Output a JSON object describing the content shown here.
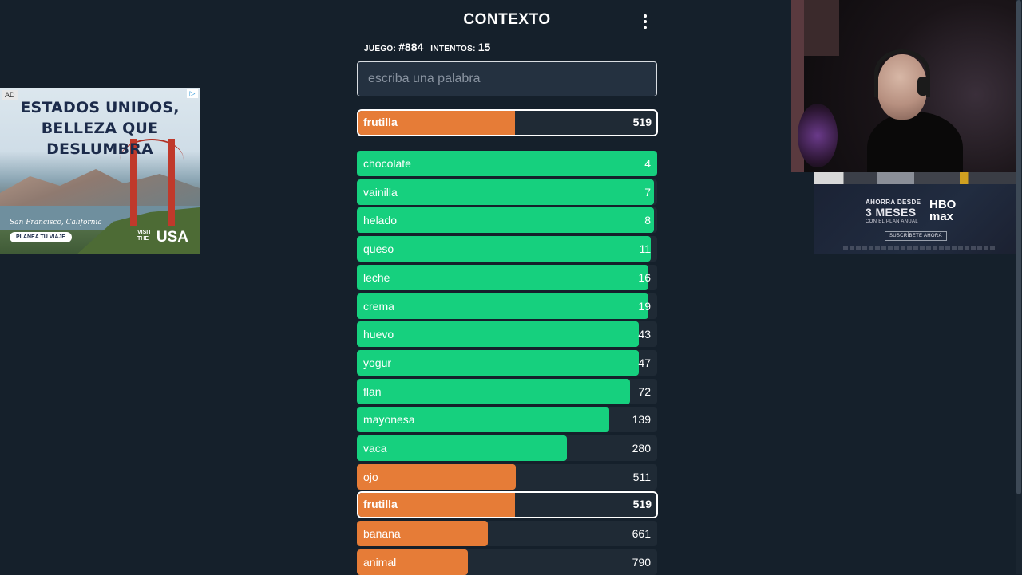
{
  "header": {
    "title": "CONTEXTO",
    "menu_icon": "vertical-dots-icon"
  },
  "info": {
    "game_label": "JUEGO:",
    "game_value": "#884",
    "attempts_label": "INTENTOS:",
    "attempts_value": "15"
  },
  "search": {
    "placeholder": "escriba una palabra",
    "value": ""
  },
  "colors": {
    "green": "#16d07e",
    "orange": "#e67c37",
    "track": "#1f2a35",
    "background": "#15202b"
  },
  "last_guess": {
    "word": "frutilla",
    "rank": "519",
    "fill_percent": 52.5,
    "color": "orange"
  },
  "guesses": [
    {
      "word": "chocolate",
      "rank": "4",
      "fill_percent": 100,
      "color": "green"
    },
    {
      "word": "vainilla",
      "rank": "7",
      "fill_percent": 99,
      "color": "green"
    },
    {
      "word": "helado",
      "rank": "8",
      "fill_percent": 99,
      "color": "green"
    },
    {
      "word": "queso",
      "rank": "11",
      "fill_percent": 98,
      "color": "green"
    },
    {
      "word": "leche",
      "rank": "16",
      "fill_percent": 97,
      "color": "green"
    },
    {
      "word": "crema",
      "rank": "19",
      "fill_percent": 97,
      "color": "green"
    },
    {
      "word": "huevo",
      "rank": "43",
      "fill_percent": 94,
      "color": "green"
    },
    {
      "word": "yogur",
      "rank": "47",
      "fill_percent": 94,
      "color": "green"
    },
    {
      "word": "flan",
      "rank": "72",
      "fill_percent": 91,
      "color": "green"
    },
    {
      "word": "mayonesa",
      "rank": "139",
      "fill_percent": 84,
      "color": "green"
    },
    {
      "word": "vaca",
      "rank": "280",
      "fill_percent": 70,
      "color": "green"
    },
    {
      "word": "ojo",
      "rank": "511",
      "fill_percent": 53,
      "color": "orange"
    },
    {
      "word": "frutilla",
      "rank": "519",
      "fill_percent": 52.5,
      "color": "orange",
      "highlighted": true
    },
    {
      "word": "banana",
      "rank": "661",
      "fill_percent": 43.5,
      "color": "orange"
    },
    {
      "word": "animal",
      "rank": "790",
      "fill_percent": 37,
      "color": "orange"
    }
  ],
  "ad_left": {
    "tag": "AD",
    "headline_1": "ESTADOS UNIDOS,",
    "headline_2": "BELLEZA QUE DESLUMBRA",
    "location": "San Francisco, California",
    "cta": "PLANEA TU VIAJE",
    "brand_small": "VISIT THE",
    "brand_big": "USA",
    "choice_icon": "ad-choices-icon"
  },
  "ad_right": {
    "line_1": "AHORRA DESDE",
    "line_2": "3 MESES",
    "line_3": "CON EL PLAN ANUAL",
    "logo_top": "HBO",
    "logo_bottom": "max",
    "cta": "SUSCRÍBETE AHORA"
  }
}
